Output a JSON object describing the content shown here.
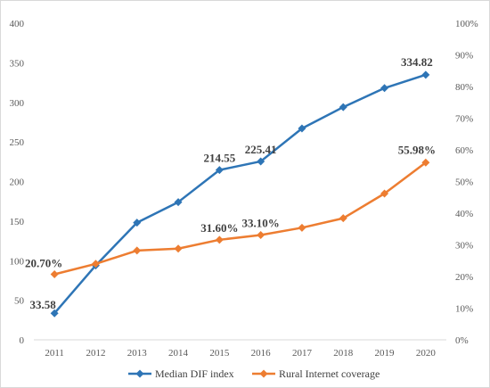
{
  "chart_data": {
    "type": "line",
    "title": "",
    "xlabel": "",
    "ylabel": "",
    "categories": [
      "2011",
      "2012",
      "2013",
      "2014",
      "2015",
      "2016",
      "2017",
      "2018",
      "2019",
      "2020"
    ],
    "y_left": {
      "ylim": [
        0,
        400
      ],
      "ticks": [
        "0",
        "50",
        "100",
        "150",
        "200",
        "250",
        "300",
        "350",
        "400"
      ]
    },
    "y_right": {
      "ylim": [
        0,
        100
      ],
      "ticks": [
        "0%",
        "10%",
        "20%",
        "30%",
        "40%",
        "50%",
        "60%",
        "70%",
        "80%",
        "90%",
        "100%"
      ]
    },
    "grid": false,
    "legend": "bottom",
    "series": [
      {
        "name": "Median DIF index",
        "axis": "left",
        "color": "#2e75b6",
        "marker": "diamond",
        "values": [
          33.58,
          94,
          148,
          174,
          214.55,
          225.41,
          267,
          294,
          318,
          334.82
        ],
        "labels": [
          "33.58",
          "",
          "",
          "",
          "214.55",
          "225.41",
          "",
          "",
          "",
          "334.82"
        ]
      },
      {
        "name": "Rural Internet coverage",
        "axis": "right",
        "color": "#ed7d31",
        "marker": "diamond",
        "values": [
          20.7,
          24,
          28.2,
          28.8,
          31.6,
          33.1,
          35.4,
          38.4,
          46.2,
          55.98
        ],
        "labels": [
          "20.70%",
          "",
          "",
          "",
          "31.60%",
          "33.10%",
          "",
          "",
          "",
          "55.98%"
        ]
      }
    ]
  }
}
